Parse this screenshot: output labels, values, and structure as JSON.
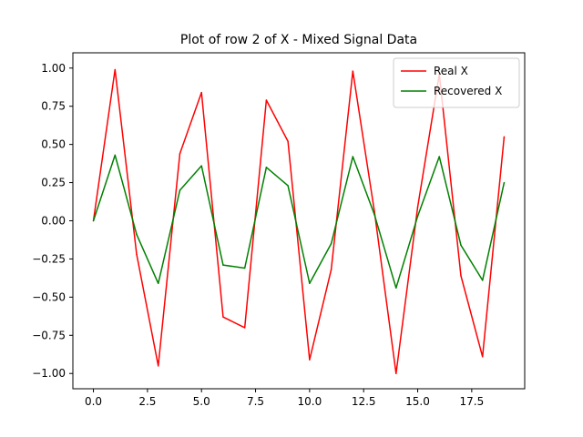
{
  "chart_data": {
    "type": "line",
    "title": "Plot of row 2 of X - Mixed Signal Data",
    "xlabel": "",
    "ylabel": "",
    "xlim": [
      -0.95,
      19.95
    ],
    "ylim": [
      -1.1,
      1.1
    ],
    "xticks": [
      0.0,
      2.5,
      5.0,
      7.5,
      10.0,
      12.5,
      15.0,
      17.5
    ],
    "xtick_labels": [
      "0.0",
      "2.5",
      "5.0",
      "7.5",
      "10.0",
      "12.5",
      "15.0",
      "17.5"
    ],
    "yticks": [
      -1.0,
      -0.75,
      -0.5,
      -0.25,
      0.0,
      0.25,
      0.5,
      0.75,
      1.0
    ],
    "ytick_labels": [
      "−1.00",
      "−0.75",
      "−0.50",
      "−0.25",
      "0.00",
      "0.25",
      "0.50",
      "0.75",
      "1.00"
    ],
    "grid": false,
    "legend_position": "top-right",
    "x": [
      0,
      1,
      2,
      3,
      4,
      5,
      6,
      7,
      8,
      9,
      10,
      11,
      12,
      13,
      14,
      15,
      16,
      17,
      18,
      19
    ],
    "series": [
      {
        "name": "Real X",
        "color": "#ff0000",
        "values": [
          0.0,
          0.99,
          -0.22,
          -0.95,
          0.44,
          0.84,
          -0.63,
          -0.7,
          0.79,
          0.52,
          -0.91,
          -0.32,
          0.98,
          0.06,
          -1.0,
          0.09,
          0.96,
          -0.36,
          -0.89,
          0.55
        ]
      },
      {
        "name": "Recovered X",
        "color": "#008000",
        "values": [
          0.0,
          0.43,
          -0.09,
          -0.41,
          0.2,
          0.36,
          -0.29,
          -0.31,
          0.35,
          0.23,
          -0.41,
          -0.15,
          0.42,
          0.04,
          -0.44,
          0.03,
          0.42,
          -0.16,
          -0.39,
          0.25
        ]
      }
    ]
  }
}
